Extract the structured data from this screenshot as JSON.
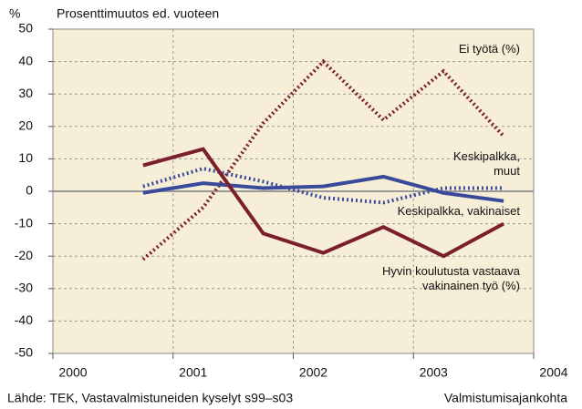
{
  "chart_data": {
    "type": "line",
    "unit_label": "%",
    "title": "Prosenttimuutos ed. vuoteen",
    "source": "Lähde: TEK, Vastavalmistuneiden kyselyt s99–s03",
    "x_label": "Valmistumisajankohta",
    "x": [
      2000.75,
      2001.25,
      2001.75,
      2002.25,
      2002.75,
      2003.25,
      2003.75
    ],
    "xlim": [
      2000,
      2004
    ],
    "xticks": [
      2000,
      2001,
      2002,
      2003,
      2004
    ],
    "ylim": [
      -50,
      50
    ],
    "yticks": [
      -50,
      -40,
      -30,
      -20,
      -10,
      0,
      10,
      20,
      30,
      40,
      50
    ],
    "grid": true,
    "series": [
      {
        "name": "Ei työtä (%)",
        "color": "#7a1f2b",
        "dash": true,
        "values": [
          -21,
          -5,
          21,
          40,
          22,
          37,
          17
        ]
      },
      {
        "name": "Keskipalkka, muut",
        "color": "#3a4a9a",
        "dash": true,
        "values": [
          1.5,
          7,
          3,
          -2,
          -3.5,
          1,
          1
        ]
      },
      {
        "name": "Keskipalkka, vakinaiset",
        "color": "#3a4a9a",
        "dash": false,
        "values": [
          -0.5,
          2.5,
          1,
          1.5,
          4.5,
          -0.5,
          -3
        ]
      },
      {
        "name": "Hyvin koulutusta vastaava vakinainen työ (%)",
        "color": "#7a1f2b",
        "dash": false,
        "values": [
          8,
          13,
          -13,
          -19,
          -11,
          -20,
          -10
        ]
      }
    ]
  }
}
